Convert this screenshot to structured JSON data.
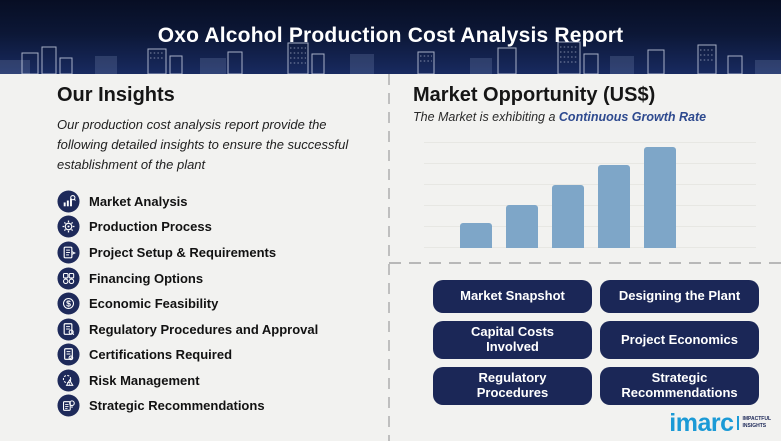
{
  "header": {
    "title": "Oxo Alcohol Production Cost Analysis Report"
  },
  "insights": {
    "heading": "Our Insights",
    "description": "Our production cost analysis report provide the following detailed insights to ensure the successful establishment of the plant",
    "items": [
      {
        "label": "Market Analysis",
        "icon": "market-analysis-icon"
      },
      {
        "label": "Production Process",
        "icon": "production-process-icon"
      },
      {
        "label": "Project Setup & Requirements",
        "icon": "project-setup-icon"
      },
      {
        "label": "Financing Options",
        "icon": "financing-options-icon"
      },
      {
        "label": "Economic Feasibility",
        "icon": "economic-feasibility-icon"
      },
      {
        "label": "Regulatory Procedures and Approval",
        "icon": "regulatory-procedures-icon"
      },
      {
        "label": "Certifications Required",
        "icon": "certifications-icon"
      },
      {
        "label": "Risk Management",
        "icon": "risk-management-icon"
      },
      {
        "label": "Strategic Recommendations",
        "icon": "strategic-recommendations-icon"
      }
    ]
  },
  "market": {
    "heading": "Market Opportunity (US$)",
    "subtitle_prefix": "The Market is exhibiting a ",
    "subtitle_highlight": "Continuous Growth Rate"
  },
  "chart_data": {
    "type": "bar",
    "categories": [
      "",
      "",
      "",
      "",
      ""
    ],
    "values": [
      25,
      43,
      62,
      82,
      100
    ],
    "title": "Market Opportunity (US$)",
    "xlabel": "",
    "ylabel": "",
    "ylim": [
      0,
      110
    ],
    "bar_color": "#7ea6c8",
    "grid": "faint-horizontal",
    "legend": "none",
    "note": "Five unlabeled bars showing continuous growth"
  },
  "buttons": [
    "Market Snapshot",
    "Designing the Plant",
    "Capital Costs Involved",
    "Project Economics",
    "Regulatory Procedures",
    "Strategic Recommendations"
  ],
  "logo": {
    "brand": "imarc",
    "tagline_line1": "IMPACTFUL",
    "tagline_line2": "INSIGHTS"
  },
  "colors": {
    "header_navy": "#0c1736",
    "button_navy": "#1b2757",
    "icon_navy": "#1e2a5a",
    "bar_blue": "#7ea6c8",
    "highlight_navy": "#2e4a8f",
    "logo_blue": "#1b9ad6",
    "background": "#f2f2f0"
  }
}
